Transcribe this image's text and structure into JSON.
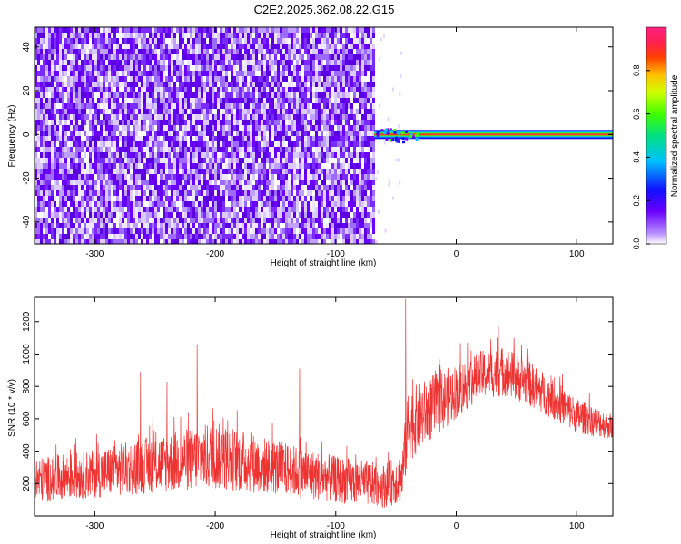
{
  "title": "C2E2.2025.362.08.22.G15",
  "chart_data": [
    {
      "type": "heatmap",
      "title": "C2E2.2025.362.08.22.G15",
      "xlabel": "Height of straight line (km)",
      "ylabel": "Frequency (Hz)",
      "xlim": [
        -350,
        130
      ],
      "ylim": [
        -50,
        49
      ],
      "x_ticks": [
        -300,
        -200,
        -100,
        0,
        100
      ],
      "y_ticks": [
        -40,
        -20,
        0,
        20,
        40
      ],
      "colorbar": {
        "label": "Normalized spectral amplitude",
        "range": [
          0.0,
          1.0
        ],
        "ticks": [
          "0.0",
          "0.2",
          "0.4",
          "0.6",
          "0.8"
        ]
      },
      "regions": [
        {
          "x_range": [
            -350,
            -68
          ],
          "freq_range": [
            -50,
            49
          ],
          "amplitude": 0.12,
          "pattern": "noise"
        },
        {
          "x_range": [
            -68,
            130
          ],
          "freq_range": [
            -2,
            2
          ],
          "amplitude": 0.95,
          "pattern": "carrier line at 0 Hz"
        }
      ]
    },
    {
      "type": "line",
      "xlabel": "Height of straight line (km)",
      "ylabel": "SNR (10 * v/v)",
      "xlim": [
        -350,
        130
      ],
      "ylim": [
        0,
        1350
      ],
      "x_ticks": [
        -300,
        -200,
        -100,
        0,
        100
      ],
      "y_ticks": [
        200,
        400,
        600,
        800,
        1000,
        1200
      ],
      "color": "#ee3333",
      "envelope": {
        "x": [
          -350,
          -300,
          -250,
          -200,
          -150,
          -100,
          -60,
          -45,
          -40,
          -20,
          0,
          20,
          40,
          60,
          80,
          100,
          130
        ],
        "low": [
          80,
          110,
          140,
          160,
          130,
          80,
          50,
          80,
          330,
          470,
          600,
          720,
          740,
          680,
          600,
          510,
          470
        ],
        "high": [
          360,
          410,
          500,
          580,
          470,
          370,
          320,
          400,
          780,
          870,
          940,
          1020,
          1050,
          960,
          850,
          730,
          630
        ]
      },
      "spikes": [
        {
          "x": -42,
          "y": 1340
        },
        {
          "x": -215,
          "y": 1060
        },
        {
          "x": -240,
          "y": 830
        },
        {
          "x": -130,
          "y": 910
        },
        {
          "x": -262,
          "y": 890
        },
        {
          "x": 35,
          "y": 1170
        }
      ]
    }
  ]
}
